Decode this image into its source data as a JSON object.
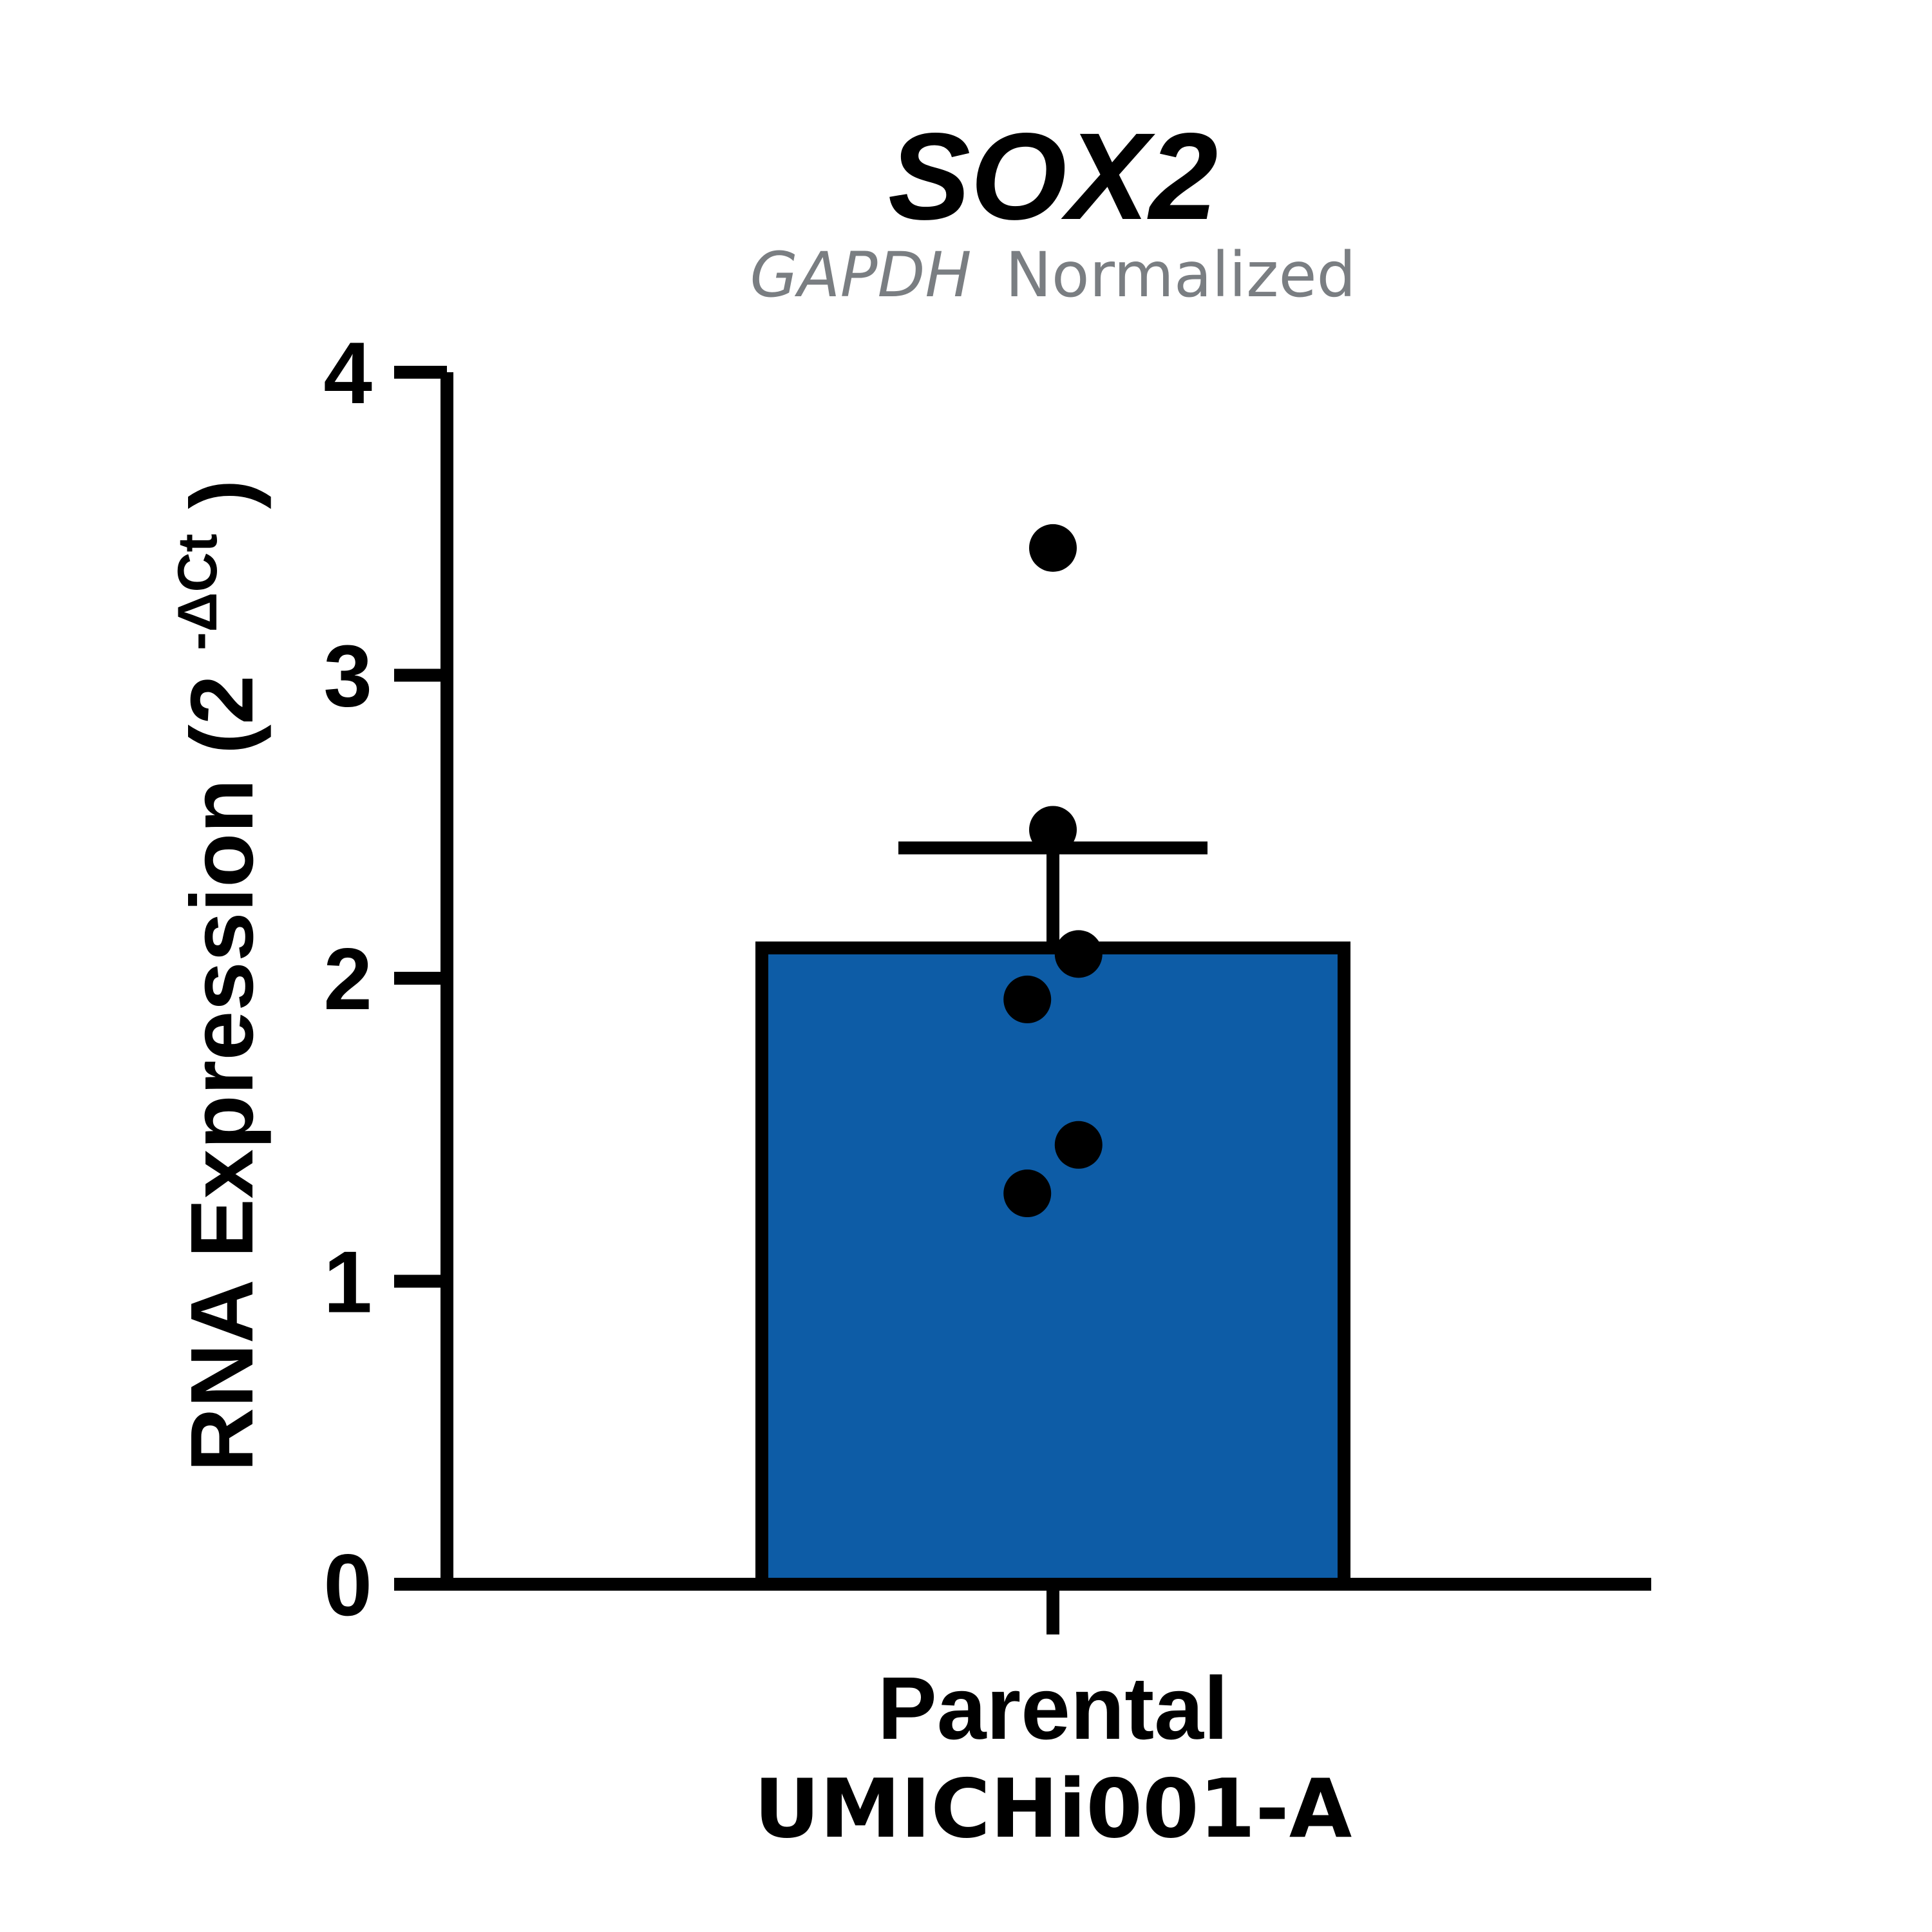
{
  "chart_data": {
    "type": "bar",
    "title": "SOX2",
    "subtitle": {
      "gene": "GAPDH",
      "text": "Normalized"
    },
    "ylabel": {
      "main": "RNA Expression (2",
      "superscript": "-ΔCt",
      "close": ")"
    },
    "ylim": [
      0,
      4
    ],
    "yticks": [
      "0",
      "1",
      "2",
      "3",
      "4"
    ],
    "categories": [
      "Parental"
    ],
    "group_label": "UMICHi001-A",
    "values": [
      2.1
    ],
    "error": [
      0.33
    ],
    "points": [
      {
        "x_offset": 0.0,
        "y": 3.42
      },
      {
        "x_offset": 0.0,
        "y": 2.49
      },
      {
        "x_offset": 0.08,
        "y": 2.08
      },
      {
        "x_offset": -0.08,
        "y": 1.93
      },
      {
        "x_offset": 0.08,
        "y": 1.45
      },
      {
        "x_offset": -0.08,
        "y": 1.29
      }
    ],
    "colors": {
      "bar": "#0d5ca6",
      "outline": "#000000",
      "points": "#000000"
    }
  }
}
